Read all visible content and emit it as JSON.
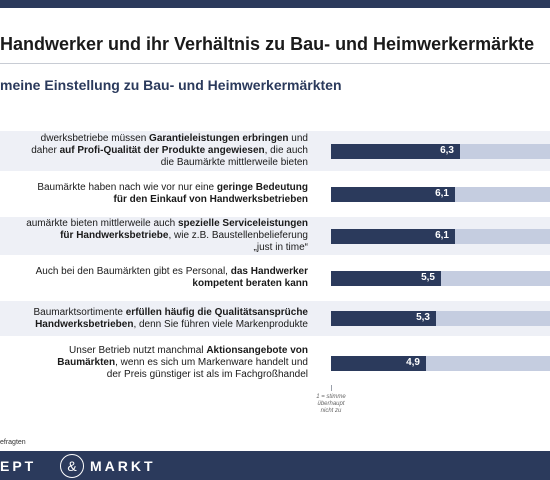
{
  "title": "Handwerker und ihr Verhältnis zu Bau- und Heimwerkermärkte",
  "subtitle": "meine Einstellung zu Bau- und Heimwerkermärkten",
  "chart_data": {
    "type": "bar",
    "orientation": "horizontal",
    "categories": [
      "dwerksbetriebe müssen Garantieleistungen erbringen und daher auf Profi-Qualität der Produkte angewiesen, die auch die Baumärkte mittlerweile bieten",
      "Baumärkte haben nach wie vor nur eine geringe Bedeutung für den Einkauf von Handwerksbetrieben",
      "aumärkte bieten mittlerweile auch spezielle Serviceleistungen für Handwerksbetriebe, wie z.B. Baustellenbelieferung „just in time“",
      "Auch bei den Baumärkten gibt es Personal, das Handwerker kompetent beraten kann",
      "Baumarktsortimente erfüllen häufig die Qualitätsansprüche Handwerksbetrieben, denn Sie führen viele Markenprodukte",
      "Unser Betrieb nutzt manchmal Aktionsangebote von Baumärkten, wenn es sich um Markenware handelt und der Preis günstiger ist als im Fachgroßhandel"
    ],
    "values": [
      6.3,
      6.1,
      6.1,
      5.5,
      5.3,
      4.9
    ],
    "value_labels": [
      "6,3",
      "6,1",
      "6,1",
      "5,5",
      "5,3",
      "4,9"
    ],
    "xlim": [
      1,
      10
    ],
    "bar_color": "#2b3a5c",
    "track_color": "#c5cde0"
  },
  "rows": [
    {
      "lines": [
        [
          {
            "t": "dwerksbetriebe müssen ",
            "b": false
          },
          {
            "t": "Garantieleistungen erbringen",
            "b": true
          },
          {
            "t": " und",
            "b": false
          }
        ],
        [
          {
            "t": "daher ",
            "b": false
          },
          {
            "t": "auf Profi-Qualität der Produkte angewiesen",
            "b": true
          },
          {
            "t": ", die auch",
            "b": false
          }
        ],
        [
          {
            "t": "die Baumärkte mittlerweile bieten",
            "b": false
          }
        ]
      ]
    },
    {
      "lines": [
        [
          {
            "t": "Baumärkte haben nach wie vor nur eine ",
            "b": false
          },
          {
            "t": "geringe Bedeutung",
            "b": true
          }
        ],
        [
          {
            "t": "für den Einkauf von Handwerksbetrieben",
            "b": true
          }
        ]
      ]
    },
    {
      "lines": [
        [
          {
            "t": "aumärkte bieten mittlerweile auch ",
            "b": false
          },
          {
            "t": "spezielle Serviceleistungen",
            "b": true
          }
        ],
        [
          {
            "t": "für Handwerksbetriebe",
            "b": true
          },
          {
            "t": ", wie z.B. Baustellenbelieferung",
            "b": false
          }
        ],
        [
          {
            "t": "„just in time“",
            "b": false
          }
        ]
      ]
    },
    {
      "lines": [
        [
          {
            "t": "Auch bei den Baumärkten gibt es Personal, ",
            "b": false
          },
          {
            "t": "das Handwerker",
            "b": true
          }
        ],
        [
          {
            "t": "kompetent beraten kann",
            "b": true
          }
        ]
      ]
    },
    {
      "lines": [
        [
          {
            "t": "Baumarktsortimente ",
            "b": false
          },
          {
            "t": "erfüllen häufig die Qualitätsansprüche",
            "b": true
          }
        ],
        [
          {
            "t": "Handwerksbetrieben",
            "b": true
          },
          {
            "t": ", denn Sie führen viele Markenprodukte",
            "b": false
          }
        ]
      ]
    },
    {
      "lines": [
        [
          {
            "t": "Unser Betrieb nutzt manchmal ",
            "b": false
          },
          {
            "t": "Aktionsangebote von",
            "b": true
          }
        ],
        [
          {
            "t": "Baumärkten",
            "b": true
          },
          {
            "t": ", wenn es sich um Markenware handelt und",
            "b": false
          }
        ],
        [
          {
            "t": "der Preis günstiger ist als im Fachgroßhandel",
            "b": false
          }
        ]
      ]
    }
  ],
  "scale_note": "1 = stimme überhaupt nicht zu",
  "footnote": "efragten",
  "footer": {
    "logo_left": "EPT",
    "logo_amp": "&",
    "logo_right": "MARKT"
  },
  "colors": {
    "brand": "#2b3a5c",
    "band": "#eef0f6"
  }
}
